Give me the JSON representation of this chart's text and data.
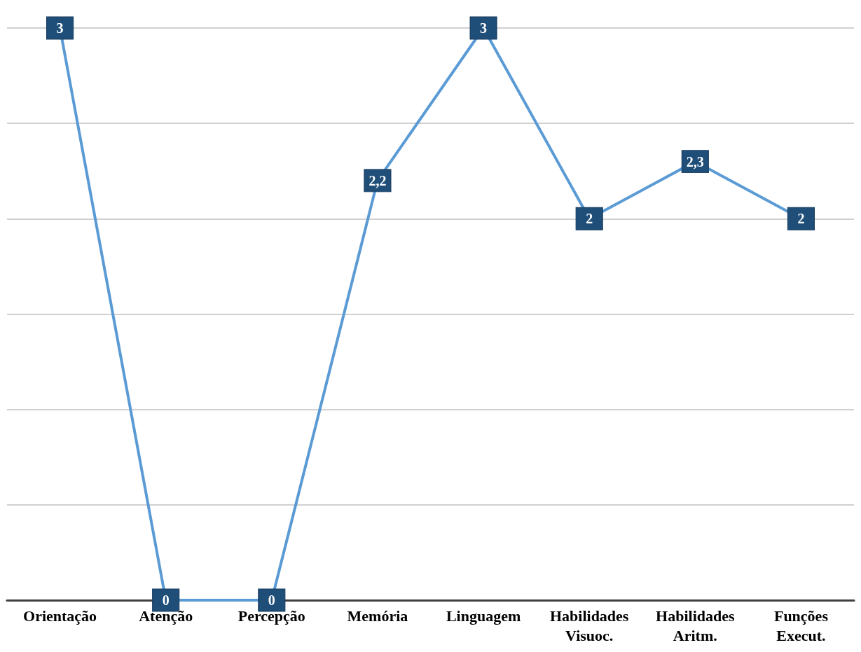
{
  "chart_data": {
    "type": "line",
    "categories": [
      "Orientação",
      "Atenção",
      "Percepção",
      "Memória",
      "Linguagem",
      "Habilidades Visuoc.",
      "Habilidades Aritm.",
      "Funções Execut."
    ],
    "series": [
      {
        "color": "#5b9bd5",
        "values": [
          3,
          0,
          0,
          2.2,
          3,
          2,
          2.3,
          2
        ],
        "value_labels": [
          "3",
          "0",
          "0",
          "2,2",
          "3",
          "2",
          "2,3",
          "2"
        ]
      }
    ],
    "marker": "square",
    "line_style": "solid",
    "grid": "y",
    "tick_labels": "x"
  }
}
